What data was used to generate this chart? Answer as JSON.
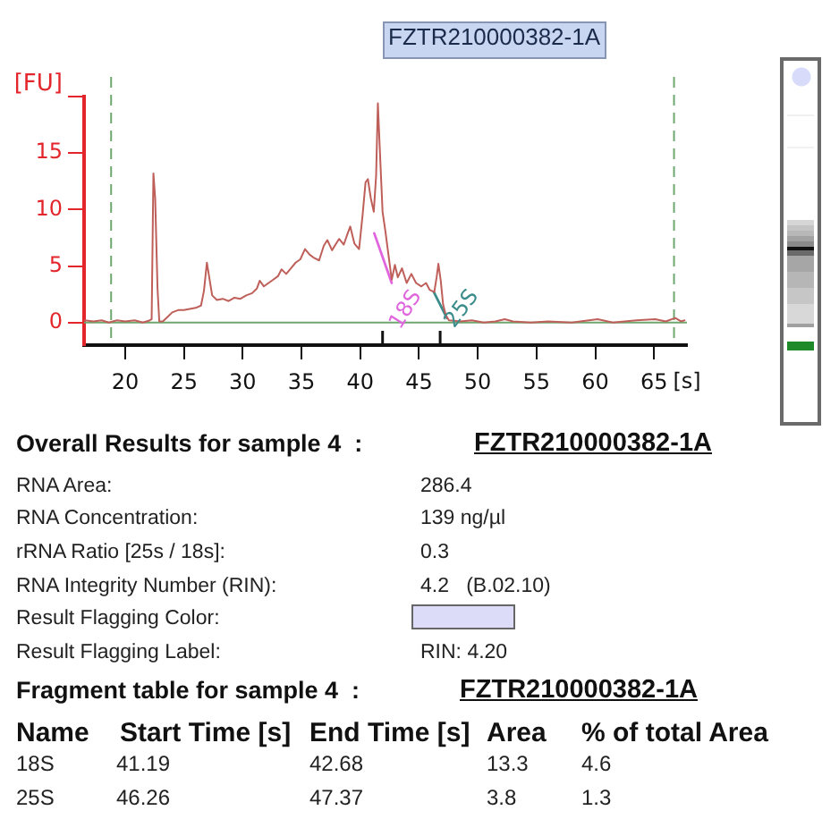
{
  "chart_data": {
    "type": "line",
    "title": "FZTR210000382-1A",
    "xlabel": "[s]",
    "ylabel": "[FU]",
    "xlim": [
      16.5,
      67.8
    ],
    "ylim": [
      -2,
      20
    ],
    "xticks": [
      20,
      25,
      30,
      35,
      40,
      {
        "value": 41.9,
        "label": null
      },
      45,
      {
        "value": 46.8,
        "label": null
      },
      50,
      55,
      60,
      65
    ],
    "yticks": [
      0,
      5,
      10,
      15,
      {
        "value": 20,
        "label": null
      }
    ],
    "ref_lines": [
      {
        "axis": "x",
        "value": 18.8,
        "color": "#6fa86f",
        "line_style": "dashed"
      },
      {
        "axis": "x",
        "value": 66.7,
        "color": "#6fa86f",
        "line_style": "dashed"
      },
      {
        "axis": "y",
        "value": 0,
        "color": "#6fa86f",
        "line_style": "solid"
      }
    ],
    "series": [
      {
        "color": "#bf5f5a",
        "x": [
          16.56,
          17.3,
          18.0,
          18.6,
          19.3,
          20.0,
          20.8,
          21.5,
          22.1,
          22.25,
          22.4,
          22.55,
          22.75,
          22.9,
          23.2,
          23.6,
          24.0,
          24.5,
          25.0,
          25.5,
          26.0,
          26.45,
          26.7,
          26.95,
          27.15,
          27.4,
          27.8,
          28.3,
          28.8,
          29.3,
          29.8,
          30.3,
          30.8,
          31.2,
          31.45,
          31.8,
          32.2,
          32.6,
          33.0,
          33.3,
          33.7,
          34.1,
          34.5,
          34.9,
          35.3,
          35.7,
          36.1,
          36.5,
          36.9,
          37.2,
          37.6,
          37.9,
          38.2,
          38.6,
          38.9,
          39.15,
          39.5,
          39.9,
          40.2,
          40.45,
          40.65,
          40.9,
          41.15,
          41.35,
          41.5,
          41.7,
          41.9,
          42.15,
          42.45,
          42.68,
          42.95,
          43.2,
          43.55,
          43.95,
          44.35,
          44.75,
          45.2,
          45.6,
          45.9,
          46.3,
          46.5,
          46.65,
          46.85,
          47.05,
          47.3,
          47.55,
          48.5,
          49.5,
          50.5,
          51.5,
          52.3,
          53.0,
          54.5,
          56.0,
          58.0,
          60.2,
          61.5,
          63.5,
          65.1,
          66.0,
          66.8,
          67.3,
          67.6
        ],
        "values": [
          0.2,
          0.1,
          0.2,
          0.0,
          0.2,
          0.1,
          0.2,
          0.0,
          0.2,
          0.3,
          13.2,
          11.0,
          3.0,
          0.1,
          0.1,
          0.5,
          0.9,
          1.1,
          1.1,
          1.2,
          1.3,
          1.5,
          2.8,
          5.3,
          4.0,
          2.4,
          2.0,
          2.1,
          1.9,
          2.2,
          2.1,
          2.4,
          2.6,
          3.0,
          3.7,
          3.2,
          3.5,
          3.8,
          4.1,
          4.7,
          4.3,
          4.8,
          5.3,
          5.6,
          6.5,
          6.0,
          5.7,
          5.5,
          6.8,
          7.3,
          6.4,
          6.9,
          7.4,
          6.9,
          7.8,
          8.5,
          7.0,
          6.5,
          9.5,
          12.4,
          12.7,
          11.0,
          9.8,
          13.0,
          19.4,
          14.5,
          9.8,
          8.0,
          5.6,
          3.8,
          5.1,
          4.0,
          4.8,
          3.5,
          4.3,
          3.5,
          3.2,
          3.5,
          2.9,
          2.7,
          4.0,
          5.2,
          3.7,
          1.6,
          0.6,
          0.2,
          0.1,
          0.2,
          0.0,
          0.1,
          0.3,
          0.1,
          0.0,
          0.1,
          0.0,
          0.3,
          0.0,
          0.2,
          0.3,
          0.1,
          0.4,
          0.1,
          0.2
        ]
      },
      {
        "name": "18S",
        "color": "#e066dd",
        "x": [
          41.19,
          42.68
        ],
        "values": [
          7.9,
          3.5
        ]
      },
      {
        "name": "25S",
        "color": "#3c8c8c",
        "x": [
          46.26,
          47.37
        ],
        "values": [
          2.7,
          0.4
        ]
      }
    ],
    "annotations": [
      "Overall Results for sample 4  :",
      "FZTR210000382-1A",
      "RNA Area:",
      "286.4",
      "RNA Concentration:",
      "139 ng/µl",
      "rRNA Ratio [25s / 18s]:",
      "0.3",
      "RNA Integrity Number (RIN):",
      "4.2   (B.02.10)",
      "Result Flagging Color:",
      "Result Flagging Label:",
      "RIN: 4.20",
      "Fragment table for sample 4  :",
      "FZTR210000382-1A",
      "Name",
      "Start Time [s]",
      "End Time [s]",
      "Area",
      "% of total Area",
      "18S",
      "41.19",
      "42.68",
      "13.3",
      "4.6",
      "25S",
      "46.26",
      "47.37",
      "3.8",
      "1.3"
    ]
  }
}
